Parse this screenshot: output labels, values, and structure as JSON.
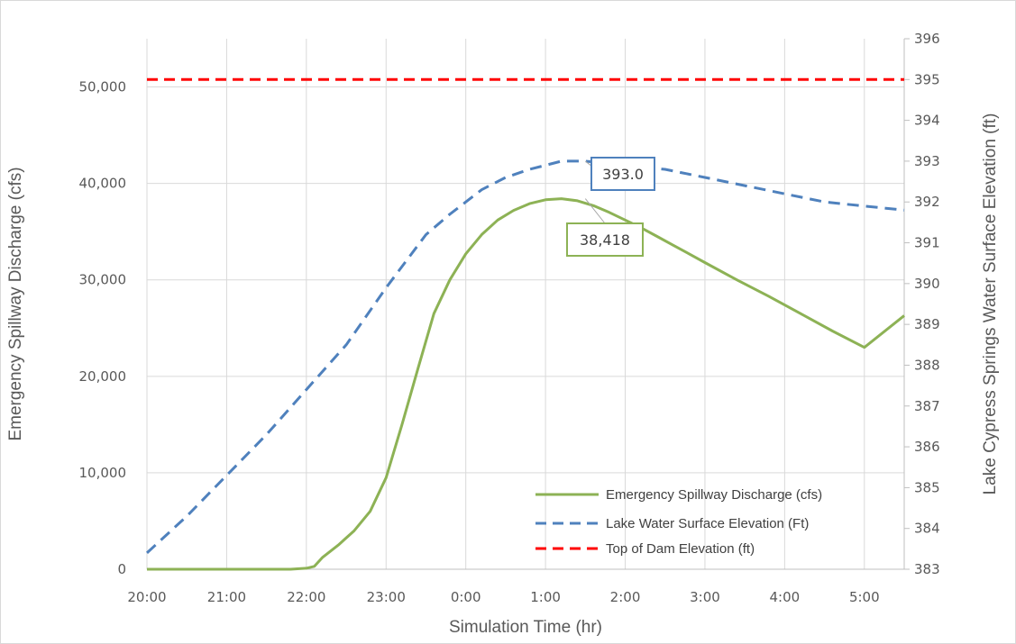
{
  "chart_data": {
    "type": "line",
    "title": "",
    "xlabel": "Simulation Time (hr)",
    "ylabel": "Emergency Spillway Discharge (cfs)",
    "ylabel_right": "Lake Cypress Springs Water Surface Elevation (ft)",
    "x_unit": "hours since 20:00",
    "xlim": [
      0,
      9.5
    ],
    "ylim": [
      0,
      55000
    ],
    "ylim_right": [
      383,
      396
    ],
    "x_tick_labels": [
      "20:00",
      "21:00",
      "22:00",
      "23:00",
      "0:00",
      "1:00",
      "2:00",
      "3:00",
      "4:00",
      "5:00"
    ],
    "y_tick_labels": [
      "0",
      "10,000",
      "20,000",
      "30,000",
      "40,000",
      "50,000"
    ],
    "y_tick_values": [
      0,
      10000,
      20000,
      30000,
      40000,
      50000
    ],
    "y_right_tick_labels": [
      "383",
      "384",
      "385",
      "386",
      "387",
      "388",
      "389",
      "390",
      "391",
      "392",
      "393",
      "394",
      "395",
      "396"
    ],
    "y_right_tick_values": [
      383,
      384,
      385,
      386,
      387,
      388,
      389,
      390,
      391,
      392,
      393,
      394,
      395,
      396
    ],
    "grid": true,
    "legend_position": "bottom-right",
    "series": [
      {
        "name": "Emergency Spillway Discharge (cfs)",
        "axis": "left",
        "color": "#8db255",
        "style": "solid",
        "x": [
          0,
          1,
          1.8,
          2.0,
          2.1,
          2.2,
          2.4,
          2.6,
          2.8,
          3.0,
          3.2,
          3.4,
          3.6,
          3.8,
          4.0,
          4.2,
          4.4,
          4.6,
          4.8,
          5.0,
          5.2,
          5.4,
          5.6,
          5.8,
          6.0,
          6.2,
          6.4,
          6.6,
          6.8,
          7.0,
          7.4,
          7.8,
          8.2,
          8.6,
          9.0,
          9.5
        ],
        "values": [
          0,
          0,
          0,
          100,
          300,
          1200,
          2500,
          4000,
          6000,
          9500,
          15000,
          20800,
          26500,
          30000,
          32700,
          34700,
          36200,
          37200,
          37900,
          38300,
          38418,
          38200,
          37700,
          37000,
          36200,
          35400,
          34500,
          33600,
          32700,
          31800,
          30000,
          28300,
          26500,
          24700,
          23000,
          26300
        ]
      },
      {
        "name": "Lake Water Surface Elevation (Ft)",
        "axis": "right",
        "color": "#4f81bd",
        "style": "dashed",
        "x": [
          0,
          0.5,
          1.0,
          1.5,
          2.0,
          2.5,
          3.0,
          3.5,
          3.8,
          4.0,
          4.2,
          4.5,
          4.8,
          5.0,
          5.2,
          5.5,
          6.0,
          6.5,
          7.0,
          7.5,
          8.0,
          8.5,
          9.0,
          9.5
        ],
        "values": [
          383.4,
          384.3,
          385.3,
          386.3,
          387.4,
          388.5,
          389.9,
          391.2,
          391.7,
          392.0,
          392.3,
          392.6,
          392.8,
          392.9,
          393.0,
          393.0,
          392.9,
          392.8,
          392.6,
          392.4,
          392.2,
          392.0,
          391.9,
          391.8
        ]
      },
      {
        "name": "Top of Dam Elevation (ft)",
        "axis": "right",
        "color": "#ff0000",
        "style": "dashed",
        "x": [
          0,
          9.5
        ],
        "values": [
          395,
          395
        ]
      }
    ],
    "annotations": [
      {
        "text": "393.0",
        "x": 5.5,
        "y": 393.0,
        "axis": "right",
        "border_color": "#4f81bd"
      },
      {
        "text": "38,418",
        "x": 5.5,
        "y": 38418,
        "axis": "left",
        "border_color": "#8db255"
      }
    ]
  }
}
